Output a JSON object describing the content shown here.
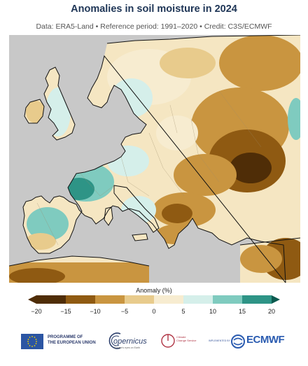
{
  "header": {
    "title": "Anomalies in soil moisture in 2024",
    "subtitle": "Data: ERA5-Land • Reference period: 1991–2020 • Credit: C3S/ECMWF"
  },
  "legend": {
    "title": "Anomaly (%)",
    "ticks": [
      "−20",
      "−15",
      "−10",
      "−5",
      "0",
      "5",
      "10",
      "15",
      "20"
    ],
    "colors": [
      "#4f2d07",
      "#8f5a12",
      "#c99540",
      "#e8cb8c",
      "#f7ecd0",
      "#d5efea",
      "#7fcbbf",
      "#2e9486",
      "#0c5a4f"
    ]
  },
  "footer": {
    "eu_text_1": "PROGRAMME OF",
    "eu_text_2": "THE EUROPEAN UNION",
    "copernicus": "opernicus",
    "copernicus_sub": "Europe's eyes on Earth",
    "c3s_1": "Climate",
    "c3s_2": "Change Service",
    "implemented_by": "IMPLEMENTED BY",
    "ecmwf": "ECMWF"
  },
  "colors": {
    "ocean": "#c8c8c8",
    "title": "#1e3556",
    "accent_ecmwf": "#2a5bb0"
  }
}
